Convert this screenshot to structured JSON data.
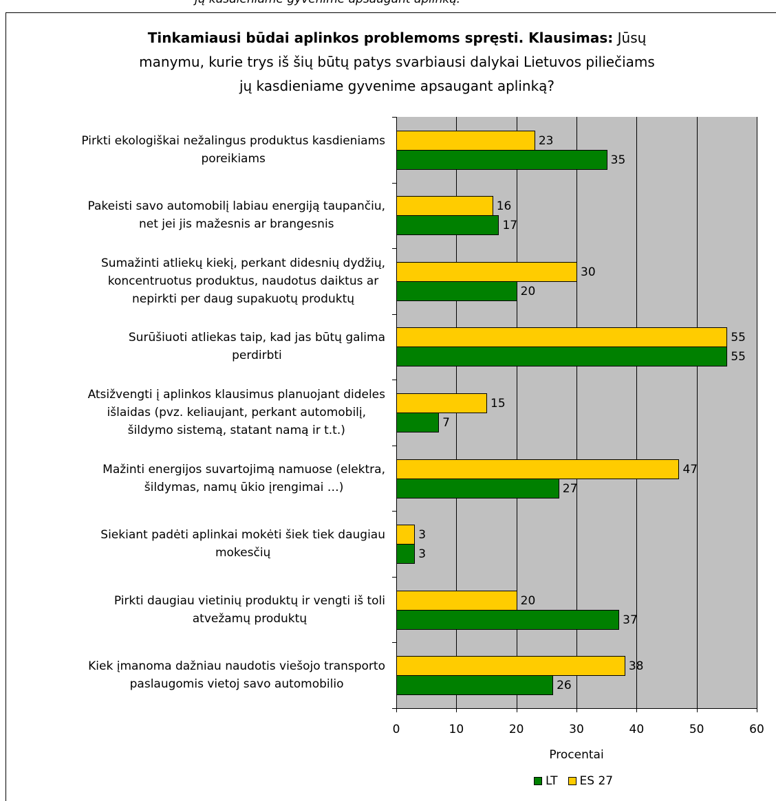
{
  "caption_fragment": "jų kasdieniame gyvenime apsaugant aplinką.",
  "chart_data": {
    "type": "bar",
    "orientation": "horizontal",
    "title": {
      "bold": "Tinkamiausi būdai aplinkos problemoms spręsti. Klausimas:",
      "lines": [
        "Jūsų",
        "manymu, kurie trys iš šių būtų patys svarbiausi dalykai Lietuvos piliečiams",
        "jų kasdieniame gyvenime apsaugant aplinką?"
      ]
    },
    "categories": [
      "Pirkti ekologiškai nežalingus produktus kasdieniams\nporeikiams",
      "Pakeisti savo automobilį labiau energiją taupančiu,\nnet jei jis mažesnis ar brangesnis",
      "Sumažinti atliekų kiekį, perkant didesnių dydžių,\nkoncentruotus produktus, naudotus daiktus ar\nnepirkti per daug supakuotų produktų",
      "Surūšiuoti atliekas taip, kad jas būtų galima\nperdirbti",
      "Atsižvengti į aplinkos klausimus planuojant dideles\nišlaidas (pvz. keliaujant, perkant automobilį,\nšildymo sistemą, statant namą ir t.t.)",
      "Mažinti energijos suvartojimą namuose (elektra,\nšildymas, namų ūkio įrengimai …)",
      "Siekiant padėti aplinkai mokėti šiek tiek daugiau\nmokesčių",
      "Pirkti daugiau vietinių produktų ir vengti iš toli\natvežamų produktų",
      "Kiek įmanoma dažniau naudotis viešojo transporto\npaslaugomis vietoj savo automobilio"
    ],
    "series": [
      {
        "name": "ES 27",
        "color": "#FFCC00",
        "values": [
          23,
          16,
          30,
          55,
          15,
          47,
          3,
          20,
          38
        ]
      },
      {
        "name": "LT",
        "color": "#008000",
        "values": [
          35,
          17,
          20,
          55,
          7,
          27,
          3,
          37,
          26
        ]
      }
    ],
    "xlabel": "Procentai",
    "xlim": [
      0,
      60
    ],
    "xticks": [
      0,
      10,
      20,
      30,
      40,
      50,
      60
    ],
    "grid": "vertical",
    "legend": "bottom",
    "data_labels": true,
    "plot_background": "#C0C0C0"
  }
}
